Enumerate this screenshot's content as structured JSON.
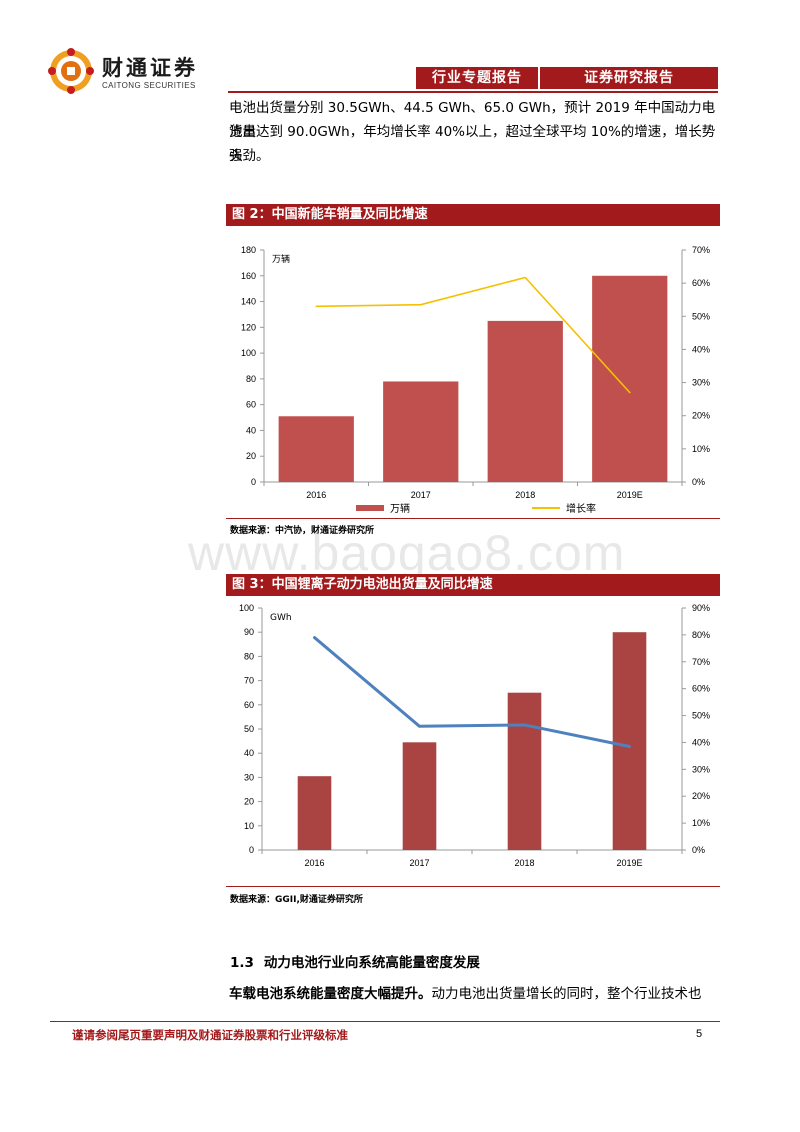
{
  "header": {
    "brand_cn": "财通证券",
    "brand_en": "CAITONG SECURITIES",
    "tab1": "行业专题报告",
    "tab2": "证券研究报告"
  },
  "intro": {
    "line1": "电池出货量分别 30.5GWh、44.5 GWh、65.0 GWh，预计 2019 年中国动力电池出",
    "line2": "货量达到 90.0GWh，年均增长率 40%以上，超过全球平均 10%的增速，增长势头",
    "line3": "强劲。"
  },
  "figure2": {
    "title": "图 2：中国新能车销量及同比增速",
    "source": "数据来源：中汽协，财通证券研究所"
  },
  "figure3": {
    "title": "图 3：中国锂离子动力电池出货量及同比增速",
    "source": "数据来源：GGII,财通证券研究所"
  },
  "watermark": "www.baogao8.com",
  "section": {
    "number": "1.3",
    "title": "动力电池行业向系统高能量密度发展"
  },
  "body": {
    "bold": "车载电池系统能量密度大幅提升。",
    "rest": "动力电池出货量增长的同时，整个行业技术也"
  },
  "footer": {
    "disclaimer": "谨请参阅尾页重要声明及财通证券股票和行业评级标准",
    "page": "5"
  },
  "colors": {
    "brand_red": "#a31a1c",
    "bar": "#c0504d",
    "bar_dark": "#a94442",
    "line_yellow": "#f5c000",
    "line_blue": "#4f81bd"
  },
  "chart_data": [
    {
      "type": "bar",
      "categories": [
        "2016",
        "2017",
        "2018",
        "2019E"
      ],
      "series": [
        {
          "name": "万辆",
          "kind": "bar",
          "axis": "left",
          "values": [
            51,
            78,
            125,
            160
          ]
        },
        {
          "name": "增长率",
          "kind": "line",
          "axis": "right",
          "values": [
            53,
            53.5,
            61.7,
            27
          ]
        }
      ],
      "ylabel": "万辆",
      "ylim": [
        0,
        180
      ],
      "yticks": [
        "0",
        "20",
        "40",
        "60",
        "80",
        "100",
        "120",
        "140",
        "160",
        "180"
      ],
      "y2lim": [
        0,
        70
      ],
      "y2ticks": [
        "0%",
        "10%",
        "20%",
        "30%",
        "40%",
        "50%",
        "60%",
        "70%"
      ],
      "legend": "bottom",
      "grid": false
    },
    {
      "type": "bar",
      "categories": [
        "2016",
        "2017",
        "2018",
        "2019E"
      ],
      "series": [
        {
          "kind": "bar",
          "axis": "left",
          "values": [
            30.5,
            44.5,
            65.0,
            90.0
          ]
        },
        {
          "kind": "line",
          "axis": "right",
          "values": [
            79,
            46,
            46.5,
            38.5
          ]
        }
      ],
      "ylabel": "GWh",
      "ylim": [
        0,
        100
      ],
      "yticks": [
        "0",
        "10",
        "20",
        "30",
        "40",
        "50",
        "60",
        "70",
        "80",
        "90",
        "100"
      ],
      "y2lim": [
        0,
        90
      ],
      "y2ticks": [
        "0%",
        "10%",
        "20%",
        "30%",
        "40%",
        "50%",
        "60%",
        "70%",
        "80%",
        "90%"
      ],
      "legend": "none",
      "grid": false
    }
  ]
}
